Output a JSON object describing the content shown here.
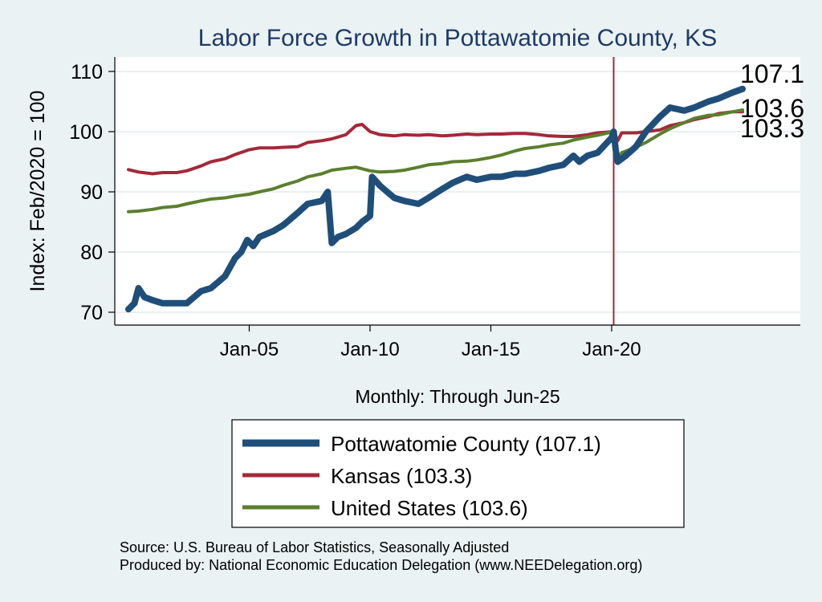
{
  "chart_data": {
    "type": "line",
    "title": "Labor Force Growth in Pottawatomie  County, KS",
    "xlabel": "Monthly: Through Jun-25",
    "ylabel": "Index: Feb/2020 = 100",
    "x_range": [
      "2000-01",
      "2025-06"
    ],
    "ylim": [
      69,
      112
    ],
    "y_ticks": [
      70,
      80,
      90,
      100,
      110
    ],
    "x_ticks": [
      {
        "date": "2005-01",
        "label": "Jan-05"
      },
      {
        "date": "2010-01",
        "label": "Jan-10"
      },
      {
        "date": "2015-01",
        "label": "Jan-15"
      },
      {
        "date": "2020-01",
        "label": "Jan-20"
      }
    ],
    "reference_line": {
      "date": "2020-02",
      "color": "#a3293a"
    },
    "grid": "horizontal",
    "legend_position": "bottom",
    "series": [
      {
        "name": "Pottawatomie  County (107.1)",
        "color": "#1f4e79",
        "end_label": "107.1",
        "points": [
          [
            "2000-01",
            70.5
          ],
          [
            "2000-04",
            71.5
          ],
          [
            "2000-06",
            74
          ],
          [
            "2000-09",
            72.5
          ],
          [
            "2001-01",
            72
          ],
          [
            "2001-06",
            71.5
          ],
          [
            "2002-01",
            71.5
          ],
          [
            "2002-06",
            71.5
          ],
          [
            "2003-01",
            73.5
          ],
          [
            "2003-06",
            74
          ],
          [
            "2004-01",
            76
          ],
          [
            "2004-06",
            79
          ],
          [
            "2004-09",
            80
          ],
          [
            "2004-12",
            82
          ],
          [
            "2005-03",
            81
          ],
          [
            "2005-06",
            82.5
          ],
          [
            "2006-01",
            83.5
          ],
          [
            "2006-06",
            84.5
          ],
          [
            "2007-01",
            86.5
          ],
          [
            "2007-06",
            88
          ],
          [
            "2008-01",
            88.5
          ],
          [
            "2008-04",
            90
          ],
          [
            "2008-06",
            81.5
          ],
          [
            "2008-09",
            82.5
          ],
          [
            "2009-01",
            83
          ],
          [
            "2009-06",
            84
          ],
          [
            "2009-09",
            85
          ],
          [
            "2010-01",
            86
          ],
          [
            "2010-02",
            92.5
          ],
          [
            "2010-06",
            91
          ],
          [
            "2011-01",
            89
          ],
          [
            "2011-06",
            88.5
          ],
          [
            "2012-01",
            88
          ],
          [
            "2012-06",
            89
          ],
          [
            "2013-01",
            90.5
          ],
          [
            "2013-06",
            91.5
          ],
          [
            "2014-01",
            92.5
          ],
          [
            "2014-06",
            92
          ],
          [
            "2015-01",
            92.5
          ],
          [
            "2015-06",
            92.5
          ],
          [
            "2016-01",
            93
          ],
          [
            "2016-06",
            93
          ],
          [
            "2017-01",
            93.5
          ],
          [
            "2017-06",
            94
          ],
          [
            "2018-01",
            94.5
          ],
          [
            "2018-06",
            96
          ],
          [
            "2018-09",
            95
          ],
          [
            "2019-01",
            96
          ],
          [
            "2019-06",
            96.5
          ],
          [
            "2020-01",
            99
          ],
          [
            "2020-02",
            100
          ],
          [
            "2020-03",
            97
          ],
          [
            "2020-04",
            95
          ],
          [
            "2020-08",
            96
          ],
          [
            "2021-01",
            97.5
          ],
          [
            "2021-06",
            100
          ],
          [
            "2022-01",
            102.5
          ],
          [
            "2022-06",
            104
          ],
          [
            "2023-01",
            103.5
          ],
          [
            "2023-06",
            104
          ],
          [
            "2024-01",
            105
          ],
          [
            "2024-06",
            105.5
          ],
          [
            "2025-01",
            106.5
          ],
          [
            "2025-06",
            107.1
          ]
        ]
      },
      {
        "name": "Kansas (103.3)",
        "color": "#a3293a",
        "end_label": "103.3",
        "points": [
          [
            "2000-01",
            93.7
          ],
          [
            "2000-06",
            93.3
          ],
          [
            "2001-01",
            93
          ],
          [
            "2001-06",
            93.2
          ],
          [
            "2002-01",
            93.2
          ],
          [
            "2002-06",
            93.5
          ],
          [
            "2003-01",
            94.3
          ],
          [
            "2003-06",
            95
          ],
          [
            "2004-01",
            95.5
          ],
          [
            "2004-06",
            96.2
          ],
          [
            "2005-01",
            97
          ],
          [
            "2005-06",
            97.3
          ],
          [
            "2006-01",
            97.3
          ],
          [
            "2006-06",
            97.4
          ],
          [
            "2007-01",
            97.5
          ],
          [
            "2007-06",
            98.2
          ],
          [
            "2008-01",
            98.5
          ],
          [
            "2008-06",
            98.8
          ],
          [
            "2009-01",
            99.5
          ],
          [
            "2009-06",
            101
          ],
          [
            "2009-09",
            101.2
          ],
          [
            "2010-01",
            100
          ],
          [
            "2010-06",
            99.5
          ],
          [
            "2011-01",
            99.3
          ],
          [
            "2011-06",
            99.5
          ],
          [
            "2012-01",
            99.4
          ],
          [
            "2012-06",
            99.5
          ],
          [
            "2013-01",
            99.3
          ],
          [
            "2013-06",
            99.4
          ],
          [
            "2014-01",
            99.6
          ],
          [
            "2014-06",
            99.5
          ],
          [
            "2015-01",
            99.6
          ],
          [
            "2015-06",
            99.6
          ],
          [
            "2016-01",
            99.7
          ],
          [
            "2016-06",
            99.7
          ],
          [
            "2017-01",
            99.5
          ],
          [
            "2017-06",
            99.3
          ],
          [
            "2018-01",
            99.2
          ],
          [
            "2018-06",
            99.2
          ],
          [
            "2019-01",
            99.5
          ],
          [
            "2019-06",
            99.8
          ],
          [
            "2020-02",
            100
          ],
          [
            "2020-04",
            98.5
          ],
          [
            "2020-06",
            99.8
          ],
          [
            "2021-01",
            99.8
          ],
          [
            "2021-06",
            100
          ],
          [
            "2022-01",
            100.3
          ],
          [
            "2022-06",
            101
          ],
          [
            "2023-01",
            101.5
          ],
          [
            "2023-06",
            102
          ],
          [
            "2024-01",
            102.5
          ],
          [
            "2024-06",
            103
          ],
          [
            "2025-01",
            103.3
          ],
          [
            "2025-06",
            103.3
          ]
        ]
      },
      {
        "name": "United States (103.6)",
        "color": "#5b7f2e",
        "end_label": "103.6",
        "points": [
          [
            "2000-01",
            86.7
          ],
          [
            "2000-06",
            86.8
          ],
          [
            "2001-01",
            87.1
          ],
          [
            "2001-06",
            87.4
          ],
          [
            "2002-01",
            87.6
          ],
          [
            "2002-06",
            88
          ],
          [
            "2003-01",
            88.5
          ],
          [
            "2003-06",
            88.8
          ],
          [
            "2004-01",
            89
          ],
          [
            "2004-06",
            89.3
          ],
          [
            "2005-01",
            89.6
          ],
          [
            "2005-06",
            90
          ],
          [
            "2006-01",
            90.5
          ],
          [
            "2006-06",
            91.1
          ],
          [
            "2007-01",
            91.8
          ],
          [
            "2007-06",
            92.5
          ],
          [
            "2008-01",
            93
          ],
          [
            "2008-06",
            93.6
          ],
          [
            "2009-01",
            93.9
          ],
          [
            "2009-06",
            94.1
          ],
          [
            "2010-01",
            93.5
          ],
          [
            "2010-06",
            93.3
          ],
          [
            "2011-01",
            93.4
          ],
          [
            "2011-06",
            93.6
          ],
          [
            "2012-01",
            94.1
          ],
          [
            "2012-06",
            94.5
          ],
          [
            "2013-01",
            94.7
          ],
          [
            "2013-06",
            95
          ],
          [
            "2014-01",
            95.1
          ],
          [
            "2014-06",
            95.3
          ],
          [
            "2015-01",
            95.7
          ],
          [
            "2015-06",
            96.1
          ],
          [
            "2016-01",
            96.8
          ],
          [
            "2016-06",
            97.2
          ],
          [
            "2017-01",
            97.5
          ],
          [
            "2017-06",
            97.8
          ],
          [
            "2018-01",
            98.1
          ],
          [
            "2018-06",
            98.6
          ],
          [
            "2019-01",
            99.1
          ],
          [
            "2019-06",
            99.4
          ],
          [
            "2020-02",
            100
          ],
          [
            "2020-04",
            95.3
          ],
          [
            "2020-06",
            96.5
          ],
          [
            "2021-01",
            97.4
          ],
          [
            "2021-06",
            98.2
          ],
          [
            "2022-01",
            99.6
          ],
          [
            "2022-06",
            100.5
          ],
          [
            "2023-01",
            101.5
          ],
          [
            "2023-06",
            102.2
          ],
          [
            "2024-01",
            102.7
          ],
          [
            "2024-06",
            102.8
          ],
          [
            "2025-01",
            103.3
          ],
          [
            "2025-06",
            103.6
          ]
        ]
      }
    ]
  },
  "footer": {
    "source": "Source: U.S. Bureau of Labor Statistics, Seasonally Adjusted",
    "produced_by": "Produced by: National Economic Education Delegation (www.NEEDelegation.org)"
  }
}
